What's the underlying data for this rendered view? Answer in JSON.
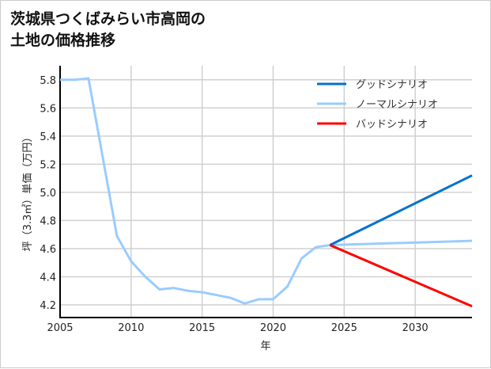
{
  "chart_data": {
    "type": "line",
    "title_lines": [
      "茨城県つくばみらい市高岡の",
      "土地の価格推移"
    ],
    "xlabel": "年",
    "ylabel": "坪（3.3㎡）単価（万円）",
    "xlim": [
      2005,
      2034
    ],
    "ylim": [
      4.11,
      5.9
    ],
    "xticks": [
      2005,
      2010,
      2015,
      2020,
      2025,
      2030
    ],
    "yticks": [
      4.2,
      4.4,
      4.6,
      4.8,
      5.0,
      5.2,
      5.4,
      5.6,
      5.8
    ],
    "grid": true,
    "legend_position": "top-right",
    "series": [
      {
        "name": "グッドシナリオ",
        "color": "#0072CE",
        "x": [
          2024,
          2034
        ],
        "y": [
          4.625,
          5.12
        ]
      },
      {
        "name": "ノーマルシナリオ",
        "color": "#99CCFF",
        "x": [
          2005,
          2006,
          2007,
          2008,
          2009,
          2010,
          2011,
          2012,
          2013,
          2014,
          2015,
          2016,
          2017,
          2018,
          2019,
          2020,
          2021,
          2022,
          2023,
          2024,
          2034
        ],
        "y": [
          5.8,
          5.8,
          5.81,
          5.25,
          4.69,
          4.51,
          4.4,
          4.31,
          4.32,
          4.3,
          4.29,
          4.27,
          4.25,
          4.21,
          4.24,
          4.24,
          4.33,
          4.53,
          4.61,
          4.625,
          4.655
        ]
      },
      {
        "name": "バッドシナリオ",
        "color": "#FF0000",
        "x": [
          2024,
          2034
        ],
        "y": [
          4.625,
          4.19
        ]
      }
    ]
  }
}
